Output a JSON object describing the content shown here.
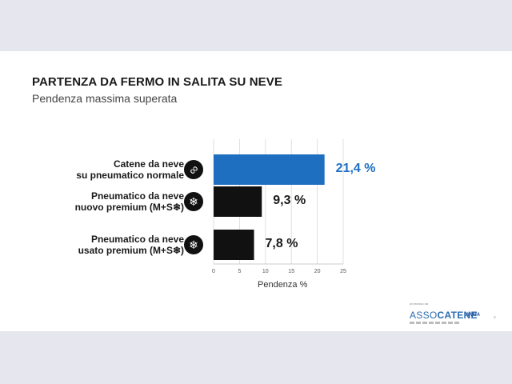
{
  "title": "PARTENZA DA FERMO IN SALITA SU NEVE",
  "subtitle": "Pendenza massima superata",
  "chart_data": {
    "type": "bar",
    "orientation": "horizontal",
    "categories": [
      [
        "Catene da neve",
        "su pneumatico normale"
      ],
      [
        "Pneumatico da neve",
        "nuovo premium (M+S❄)"
      ],
      [
        "Pneumatico da neve",
        "usato premium (M+S❄)"
      ]
    ],
    "values": [
      21.4,
      9.3,
      7.8
    ],
    "value_labels": [
      "21,4 %",
      "9,3 %",
      "7,8 %"
    ],
    "icons": [
      "chain-link-icon",
      "snowflake-icon",
      "snowflake-icon"
    ],
    "colors": [
      "#1f6fc1",
      "#111111",
      "#111111"
    ],
    "xlabel": "Pendenza %",
    "xlim": [
      0,
      25
    ],
    "xticks": [
      0,
      5,
      10,
      15,
      20,
      25
    ],
    "grid": true
  },
  "footer": {
    "caption": "promosso da",
    "logo_prefix": "ASSO",
    "logo_suffix": "CATENE",
    "partner": "ANMA"
  }
}
